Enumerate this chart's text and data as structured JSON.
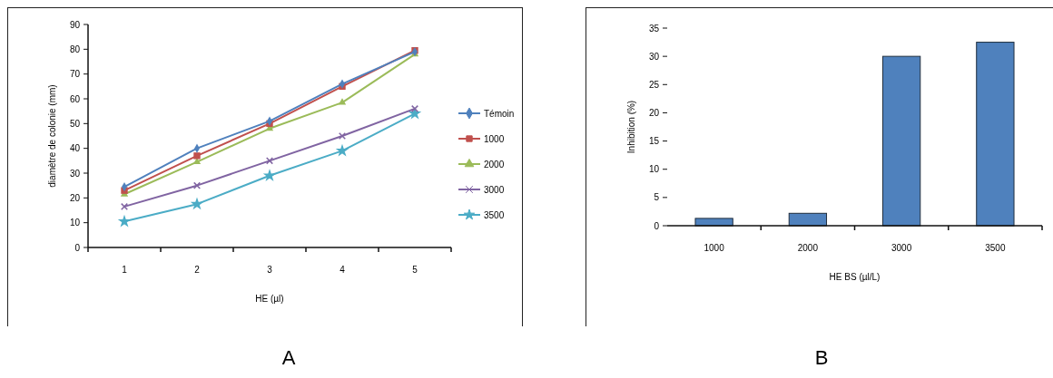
{
  "chart_data": [
    {
      "type": "line",
      "xlabel": "HE (µl)",
      "ylabel": "diamètre de colonie (mm)",
      "annotations": [
        "A"
      ],
      "categories": [
        "1",
        "2",
        "3",
        "4",
        "5"
      ],
      "ylim": [
        0,
        90
      ],
      "yticks": [
        0,
        10,
        20,
        30,
        40,
        50,
        60,
        70,
        80,
        90
      ],
      "grid": false,
      "legend": "right",
      "series": [
        {
          "name": "Témoin",
          "color": "#4f81bd",
          "marker": "diamond",
          "values": [
            24.5,
            40,
            51,
            66,
            79
          ]
        },
        {
          "name": "1000",
          "color": "#c0504d",
          "marker": "square",
          "values": [
            23,
            37,
            50,
            65,
            79.5
          ]
        },
        {
          "name": "2000",
          "color": "#9bbb59",
          "marker": "triangle",
          "values": [
            21.5,
            34.5,
            48,
            58.5,
            78
          ]
        },
        {
          "name": "3000",
          "color": "#8064a2",
          "marker": "cross",
          "values": [
            16.5,
            25,
            35,
            45,
            56
          ]
        },
        {
          "name": "3500",
          "color": "#4bacc6",
          "marker": "star",
          "values": [
            10.5,
            17.5,
            29,
            39,
            54
          ]
        }
      ]
    },
    {
      "type": "bar",
      "xlabel": "HE BS (µl/L)",
      "ylabel": "Inhibition (%)",
      "annotations": [
        "B"
      ],
      "categories": [
        "1000",
        "2000",
        "3000",
        "3500"
      ],
      "values": [
        1.3,
        2.2,
        30,
        32.5
      ],
      "color": "#4f81bd",
      "ylim": [
        0,
        35
      ],
      "yticks": [
        0,
        5,
        10,
        15,
        20,
        25,
        30,
        35
      ],
      "grid": false,
      "legend": false
    }
  ]
}
